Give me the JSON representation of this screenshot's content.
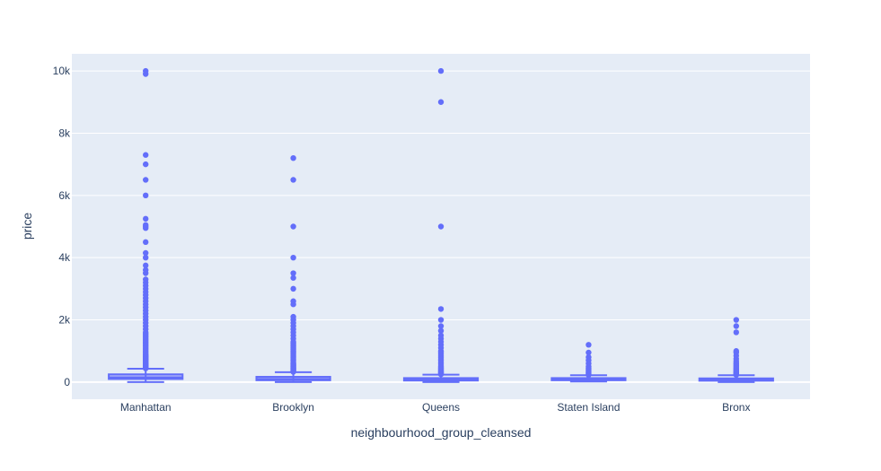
{
  "chart_data": {
    "type": "box",
    "xlabel": "neighbourhood_group_cleansed",
    "ylabel": "price",
    "ylim": [
      -550,
      10550
    ],
    "yticks": [
      0,
      2000,
      4000,
      6000,
      8000,
      10000
    ],
    "ytick_labels": [
      "0",
      "2k",
      "4k",
      "6k",
      "8k",
      "10k"
    ],
    "grid": true,
    "colors": {
      "marker": "#636efa",
      "plot_bg": "#e5ecf6",
      "grid": "#ffffff",
      "text": "#2a3f5f"
    },
    "categories": [
      "Manhattan",
      "Brooklyn",
      "Queens",
      "Staten Island",
      "Bronx"
    ],
    "boxes": [
      {
        "category": "Manhattan",
        "min": 0,
        "q1": 100,
        "median": 150,
        "q3": 250,
        "max": 430,
        "outliers": [
          440,
          460,
          480,
          500,
          520,
          540,
          560,
          580,
          600,
          620,
          650,
          680,
          700,
          730,
          750,
          780,
          800,
          830,
          850,
          880,
          900,
          950,
          1000,
          1050,
          1100,
          1150,
          1200,
          1250,
          1300,
          1350,
          1400,
          1450,
          1500,
          1550,
          1600,
          1700,
          1800,
          1900,
          2000,
          2100,
          2200,
          2300,
          2400,
          2500,
          2600,
          2700,
          2800,
          2900,
          3000,
          3100,
          3200,
          3300,
          3500,
          3600,
          3750,
          4000,
          4150,
          4500,
          4950,
          5000,
          5050,
          5250,
          6000,
          6500,
          7000,
          7300,
          9900,
          10000
        ]
      },
      {
        "category": "Brooklyn",
        "min": 0,
        "q1": 60,
        "median": 100,
        "q3": 170,
        "max": 320,
        "outliers": [
          330,
          350,
          370,
          390,
          410,
          430,
          450,
          480,
          500,
          530,
          550,
          580,
          600,
          650,
          700,
          750,
          800,
          850,
          900,
          950,
          1000,
          1050,
          1100,
          1150,
          1200,
          1250,
          1300,
          1400,
          1500,
          1600,
          1700,
          1800,
          1900,
          2000,
          2100,
          2500,
          2600,
          3000,
          3350,
          3500,
          4000,
          5000,
          6500,
          7200
        ]
      },
      {
        "category": "Queens",
        "min": 0,
        "q1": 50,
        "median": 80,
        "q3": 130,
        "max": 240,
        "outliers": [
          250,
          270,
          290,
          310,
          330,
          350,
          380,
          400,
          430,
          460,
          500,
          550,
          600,
          650,
          700,
          750,
          800,
          850,
          900,
          950,
          1000,
          1100,
          1200,
          1300,
          1400,
          1500,
          1650,
          1800,
          2000,
          2350,
          5000,
          9000,
          10000
        ]
      },
      {
        "category": "Staten Island",
        "min": 20,
        "q1": 60,
        "median": 90,
        "q3": 130,
        "max": 220,
        "outliers": [
          230,
          260,
          290,
          320,
          360,
          400,
          450,
          500,
          600,
          700,
          800,
          950,
          1200
        ]
      },
      {
        "category": "Bronx",
        "min": 0,
        "q1": 45,
        "median": 80,
        "q3": 120,
        "max": 220,
        "outliers": [
          230,
          250,
          270,
          290,
          310,
          330,
          360,
          390,
          420,
          450,
          490,
          530,
          580,
          620,
          680,
          750,
          850,
          950,
          1000,
          1600,
          1800,
          2000
        ]
      }
    ]
  }
}
